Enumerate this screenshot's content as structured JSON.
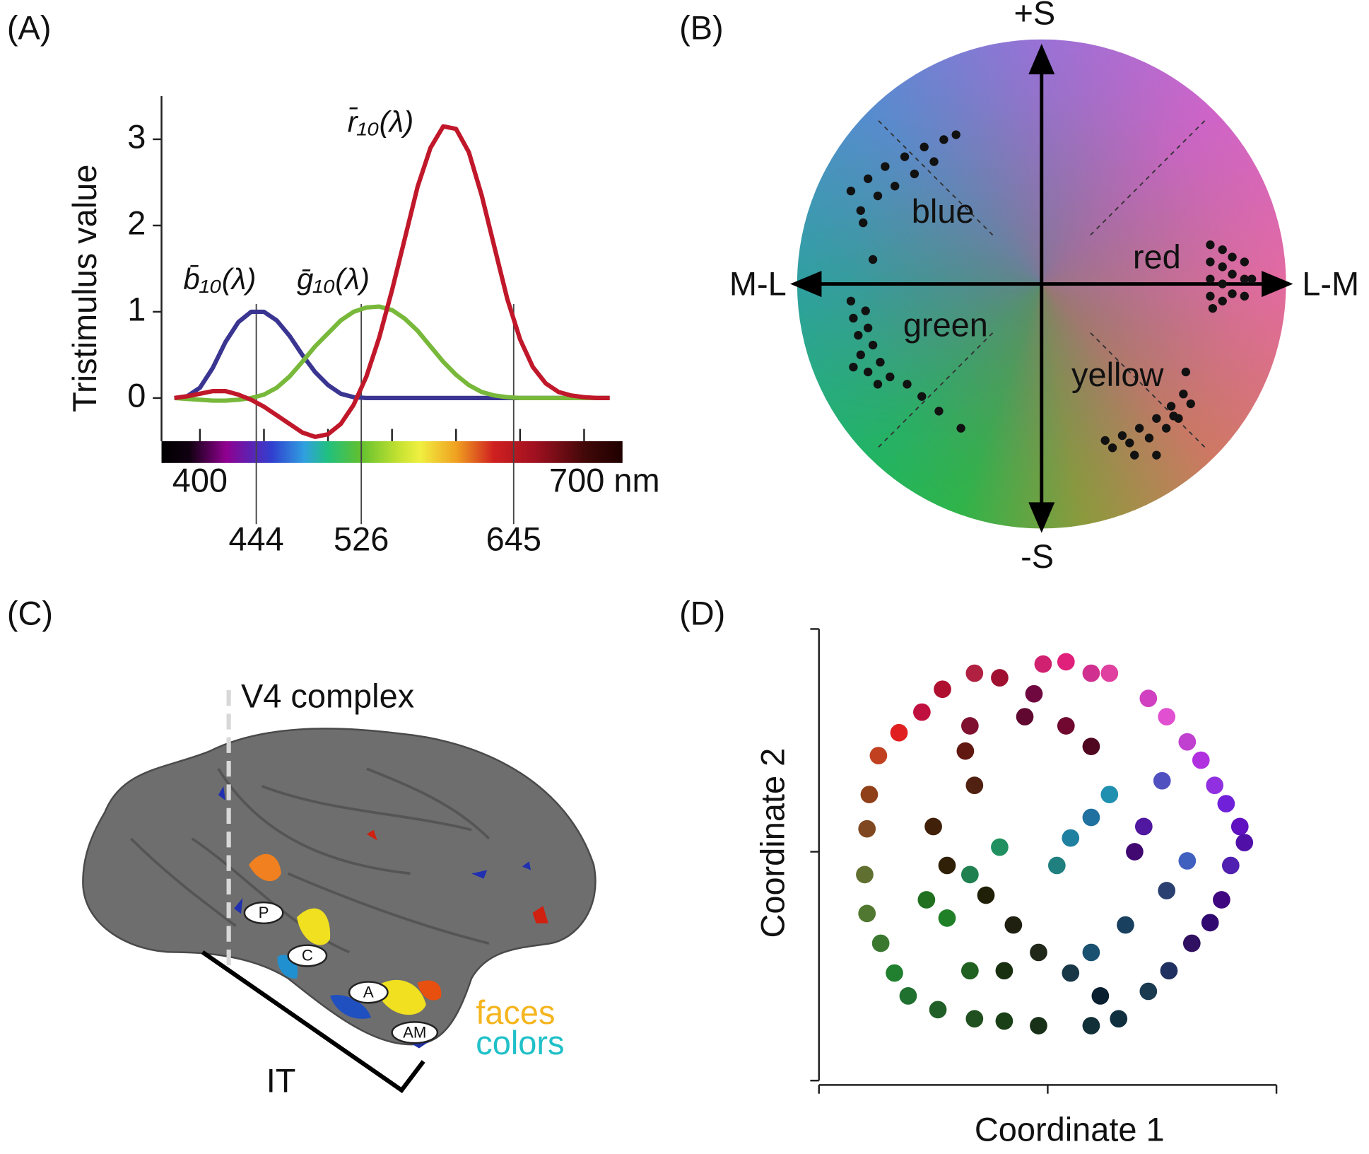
{
  "chart_data": [
    {
      "panel_label": "(A)",
      "type": "line",
      "y_label": "Tristimulus value",
      "x": [
        380,
        390,
        400,
        410,
        420,
        430,
        440,
        450,
        460,
        470,
        480,
        490,
        500,
        510,
        520,
        530,
        540,
        550,
        560,
        570,
        580,
        590,
        600,
        610,
        620,
        630,
        640,
        650,
        660,
        670,
        680,
        690,
        700,
        710,
        720
      ],
      "series": [
        {
          "name": "b̄₁₀(λ)",
          "color": "#3b3592",
          "values": [
            0,
            0.02,
            0.12,
            0.35,
            0.65,
            0.88,
            1.0,
            1.0,
            0.9,
            0.72,
            0.5,
            0.3,
            0.15,
            0.05,
            0.01,
            0,
            0,
            0,
            0,
            0,
            0,
            0,
            0,
            0,
            0,
            0,
            0,
            0,
            0,
            0,
            0,
            0,
            0,
            0,
            0
          ]
        },
        {
          "name": "ḡ₁₀(λ)",
          "color": "#78b83a",
          "values": [
            0,
            -0.01,
            -0.02,
            -0.03,
            -0.03,
            -0.02,
            0,
            0.04,
            0.12,
            0.25,
            0.42,
            0.6,
            0.75,
            0.9,
            1.0,
            1.05,
            1.06,
            1.02,
            0.92,
            0.78,
            0.6,
            0.42,
            0.27,
            0.15,
            0.07,
            0.03,
            0.01,
            0,
            0,
            0,
            0,
            0,
            0,
            0,
            0
          ]
        },
        {
          "name": "r̄₁₀(λ)",
          "color": "#c0182a",
          "values": [
            0,
            0.02,
            0.05,
            0.08,
            0.08,
            0.04,
            -0.02,
            -0.1,
            -0.2,
            -0.3,
            -0.4,
            -0.45,
            -0.42,
            -0.3,
            -0.08,
            0.25,
            0.7,
            1.25,
            1.85,
            2.45,
            2.9,
            3.15,
            3.12,
            2.85,
            2.35,
            1.75,
            1.15,
            0.68,
            0.36,
            0.17,
            0.07,
            0.03,
            0.01,
            0,
            0
          ]
        }
      ],
      "xlim": [
        370,
        730
      ],
      "ylim": [
        -0.5,
        3.5
      ],
      "yticks": [
        0,
        1,
        2,
        3
      ],
      "xticks": [
        400,
        {
          "value": 700,
          "label": "700 nm"
        }
      ],
      "minor_xticks": [
        450,
        500,
        550,
        600,
        650
      ],
      "vlines": [
        444,
        526,
        645
      ]
    },
    {
      "panel_label": "(B)",
      "type": "scatter",
      "color": "#111111",
      "axis_labels": {
        "top": "+S",
        "bottom": "-S",
        "left": "M-L",
        "right": "L-M"
      },
      "annotations": [
        "blue",
        "red",
        "green",
        "yellow"
      ],
      "xlim": [
        -1,
        1
      ],
      "ylim": [
        -1,
        1
      ],
      "x": [
        -0.78,
        -0.71,
        -0.64,
        -0.56,
        -0.48,
        -0.4,
        -0.35,
        -0.74,
        -0.67,
        -0.6,
        -0.52,
        -0.44,
        -0.69,
        -0.73,
        0.69,
        0.69,
        0.69,
        0.69,
        0.7,
        0.74,
        0.74,
        0.74,
        0.74,
        0.78,
        0.78,
        0.78,
        0.83,
        0.83,
        0.83,
        0.86,
        -0.78,
        -0.77,
        -0.75,
        -0.74,
        -0.71,
        -0.67,
        -0.72,
        -0.71,
        -0.69,
        -0.66,
        -0.62,
        -0.55,
        -0.49,
        -0.42,
        -0.33,
        -0.77,
        0.26,
        0.33,
        0.4,
        0.47,
        0.53,
        0.58,
        0.59,
        0.29,
        0.36,
        0.44,
        0.51,
        0.56,
        0.61,
        0.38,
        0.47,
        0.54
      ],
      "values": [
        0.38,
        0.43,
        0.48,
        0.52,
        0.56,
        0.59,
        0.61,
        0.3,
        0.36,
        0.4,
        0.45,
        0.5,
        0.1,
        0.25,
        0.16,
        0.09,
        0.02,
        -0.05,
        -0.1,
        0.14,
        0.07,
        0.0,
        -0.07,
        0.11,
        0.04,
        -0.04,
        0.09,
        0.02,
        -0.05,
        0.02,
        -0.07,
        -0.14,
        -0.21,
        -0.29,
        -0.36,
        -0.41,
        -0.11,
        -0.18,
        -0.25,
        -0.32,
        -0.38,
        -0.41,
        -0.46,
        -0.52,
        -0.59,
        -0.34,
        -0.64,
        -0.62,
        -0.59,
        -0.55,
        -0.5,
        -0.45,
        -0.36,
        -0.67,
        -0.65,
        -0.63,
        -0.59,
        -0.55,
        -0.49,
        -0.7,
        -0.7,
        -0.54
      ]
    },
    {
      "panel_label": "(D)",
      "type": "scatter",
      "x_label": "Coordinate 1",
      "y_label": "Coordinate 2",
      "xlim": [
        -1,
        1
      ],
      "ylim": [
        -1,
        1
      ],
      "xtick_marks": [
        -1,
        0,
        1
      ],
      "ytick_marks": [
        -1,
        0,
        1
      ],
      "x": [
        0.08,
        -0.02,
        0.27,
        0.19,
        0.44,
        0.52,
        0.61,
        0.67,
        0.73,
        0.78,
        0.84,
        0.86,
        0.8,
        0.76,
        0.71,
        0.63,
        0.53,
        0.44,
        0.31,
        0.19,
        -0.04,
        -0.19,
        -0.32,
        -0.48,
        -0.61,
        -0.67,
        -0.73,
        -0.79,
        -0.8,
        -0.79,
        -0.78,
        -0.74,
        -0.65,
        -0.55,
        -0.46,
        -0.32,
        -0.21,
        -0.06,
        -0.1,
        -0.34,
        -0.36,
        -0.32,
        -0.5,
        -0.44,
        -0.27,
        -0.15,
        -0.19,
        -0.34,
        -0.44,
        -0.53,
        -0.34,
        -0.21,
        0.04,
        0.1,
        0.19,
        0.27,
        0.42,
        0.38,
        0.5,
        0.61,
        0.52,
        0.34,
        0.19,
        0.1,
        0.08,
        0.19,
        -0.04,
        0.23
      ],
      "values": [
        0.83,
        0.82,
        0.78,
        0.78,
        0.67,
        0.59,
        0.48,
        0.4,
        0.29,
        0.21,
        0.11,
        0.04,
        -0.06,
        -0.21,
        -0.31,
        -0.4,
        -0.52,
        -0.61,
        -0.73,
        -0.76,
        -0.76,
        -0.74,
        -0.73,
        -0.69,
        -0.63,
        -0.53,
        -0.4,
        -0.27,
        -0.1,
        0.1,
        0.25,
        0.42,
        0.52,
        0.61,
        0.71,
        0.78,
        0.76,
        0.69,
        0.59,
        0.55,
        0.44,
        0.29,
        0.11,
        -0.06,
        -0.19,
        -0.32,
        -0.52,
        -0.52,
        -0.29,
        -0.21,
        -0.1,
        0.02,
        -0.06,
        0.06,
        0.15,
        0.25,
        0.11,
        0.0,
        0.31,
        -0.04,
        -0.17,
        -0.32,
        -0.44,
        -0.53,
        0.55,
        0.46,
        -0.44,
        -0.63
      ],
      "colors": [
        "#e0207a",
        "#d02070",
        "#e040a0",
        "#d03090",
        "#d040c0",
        "#e050d0",
        "#c040d0",
        "#b030e0",
        "#9030e0",
        "#7020d8",
        "#6010c0",
        "#5010a8",
        "#5020b0",
        "#400880",
        "#300870",
        "#301060",
        "#203060",
        "#1a3a50",
        "#103040",
        "#123038",
        "#183018",
        "#1a4018",
        "#205020",
        "#206028",
        "#207030",
        "#208030",
        "#3a7830",
        "#507830",
        "#607030",
        "#804820",
        "#904018",
        "#c04020",
        "#e02020",
        "#c01040",
        "#b01030",
        "#b02040",
        "#a01030",
        "#700840",
        "#600830",
        "#801030",
        "#601810",
        "#502010",
        "#402008",
        "#302008",
        "#202008",
        "#202010",
        "#183010",
        "#206020",
        "#208028",
        "#207020",
        "#208050",
        "#209060",
        "#208080",
        "#2080a0",
        "#2070a0",
        "#2090b0",
        "#5018a0",
        "#400870",
        "#5050c0",
        "#4060c0",
        "#2a4070",
        "#1a4060",
        "#1a5070",
        "#183848",
        "#700830",
        "#500820",
        "#20281a",
        "#0a2030"
      ]
    }
  ],
  "panel_c": {
    "panel_label": "(C)",
    "v4": "V4 complex",
    "it": "IT",
    "faces": "faces",
    "colors": "colors",
    "regions": [
      "P",
      "C",
      "A",
      "AM"
    ]
  }
}
